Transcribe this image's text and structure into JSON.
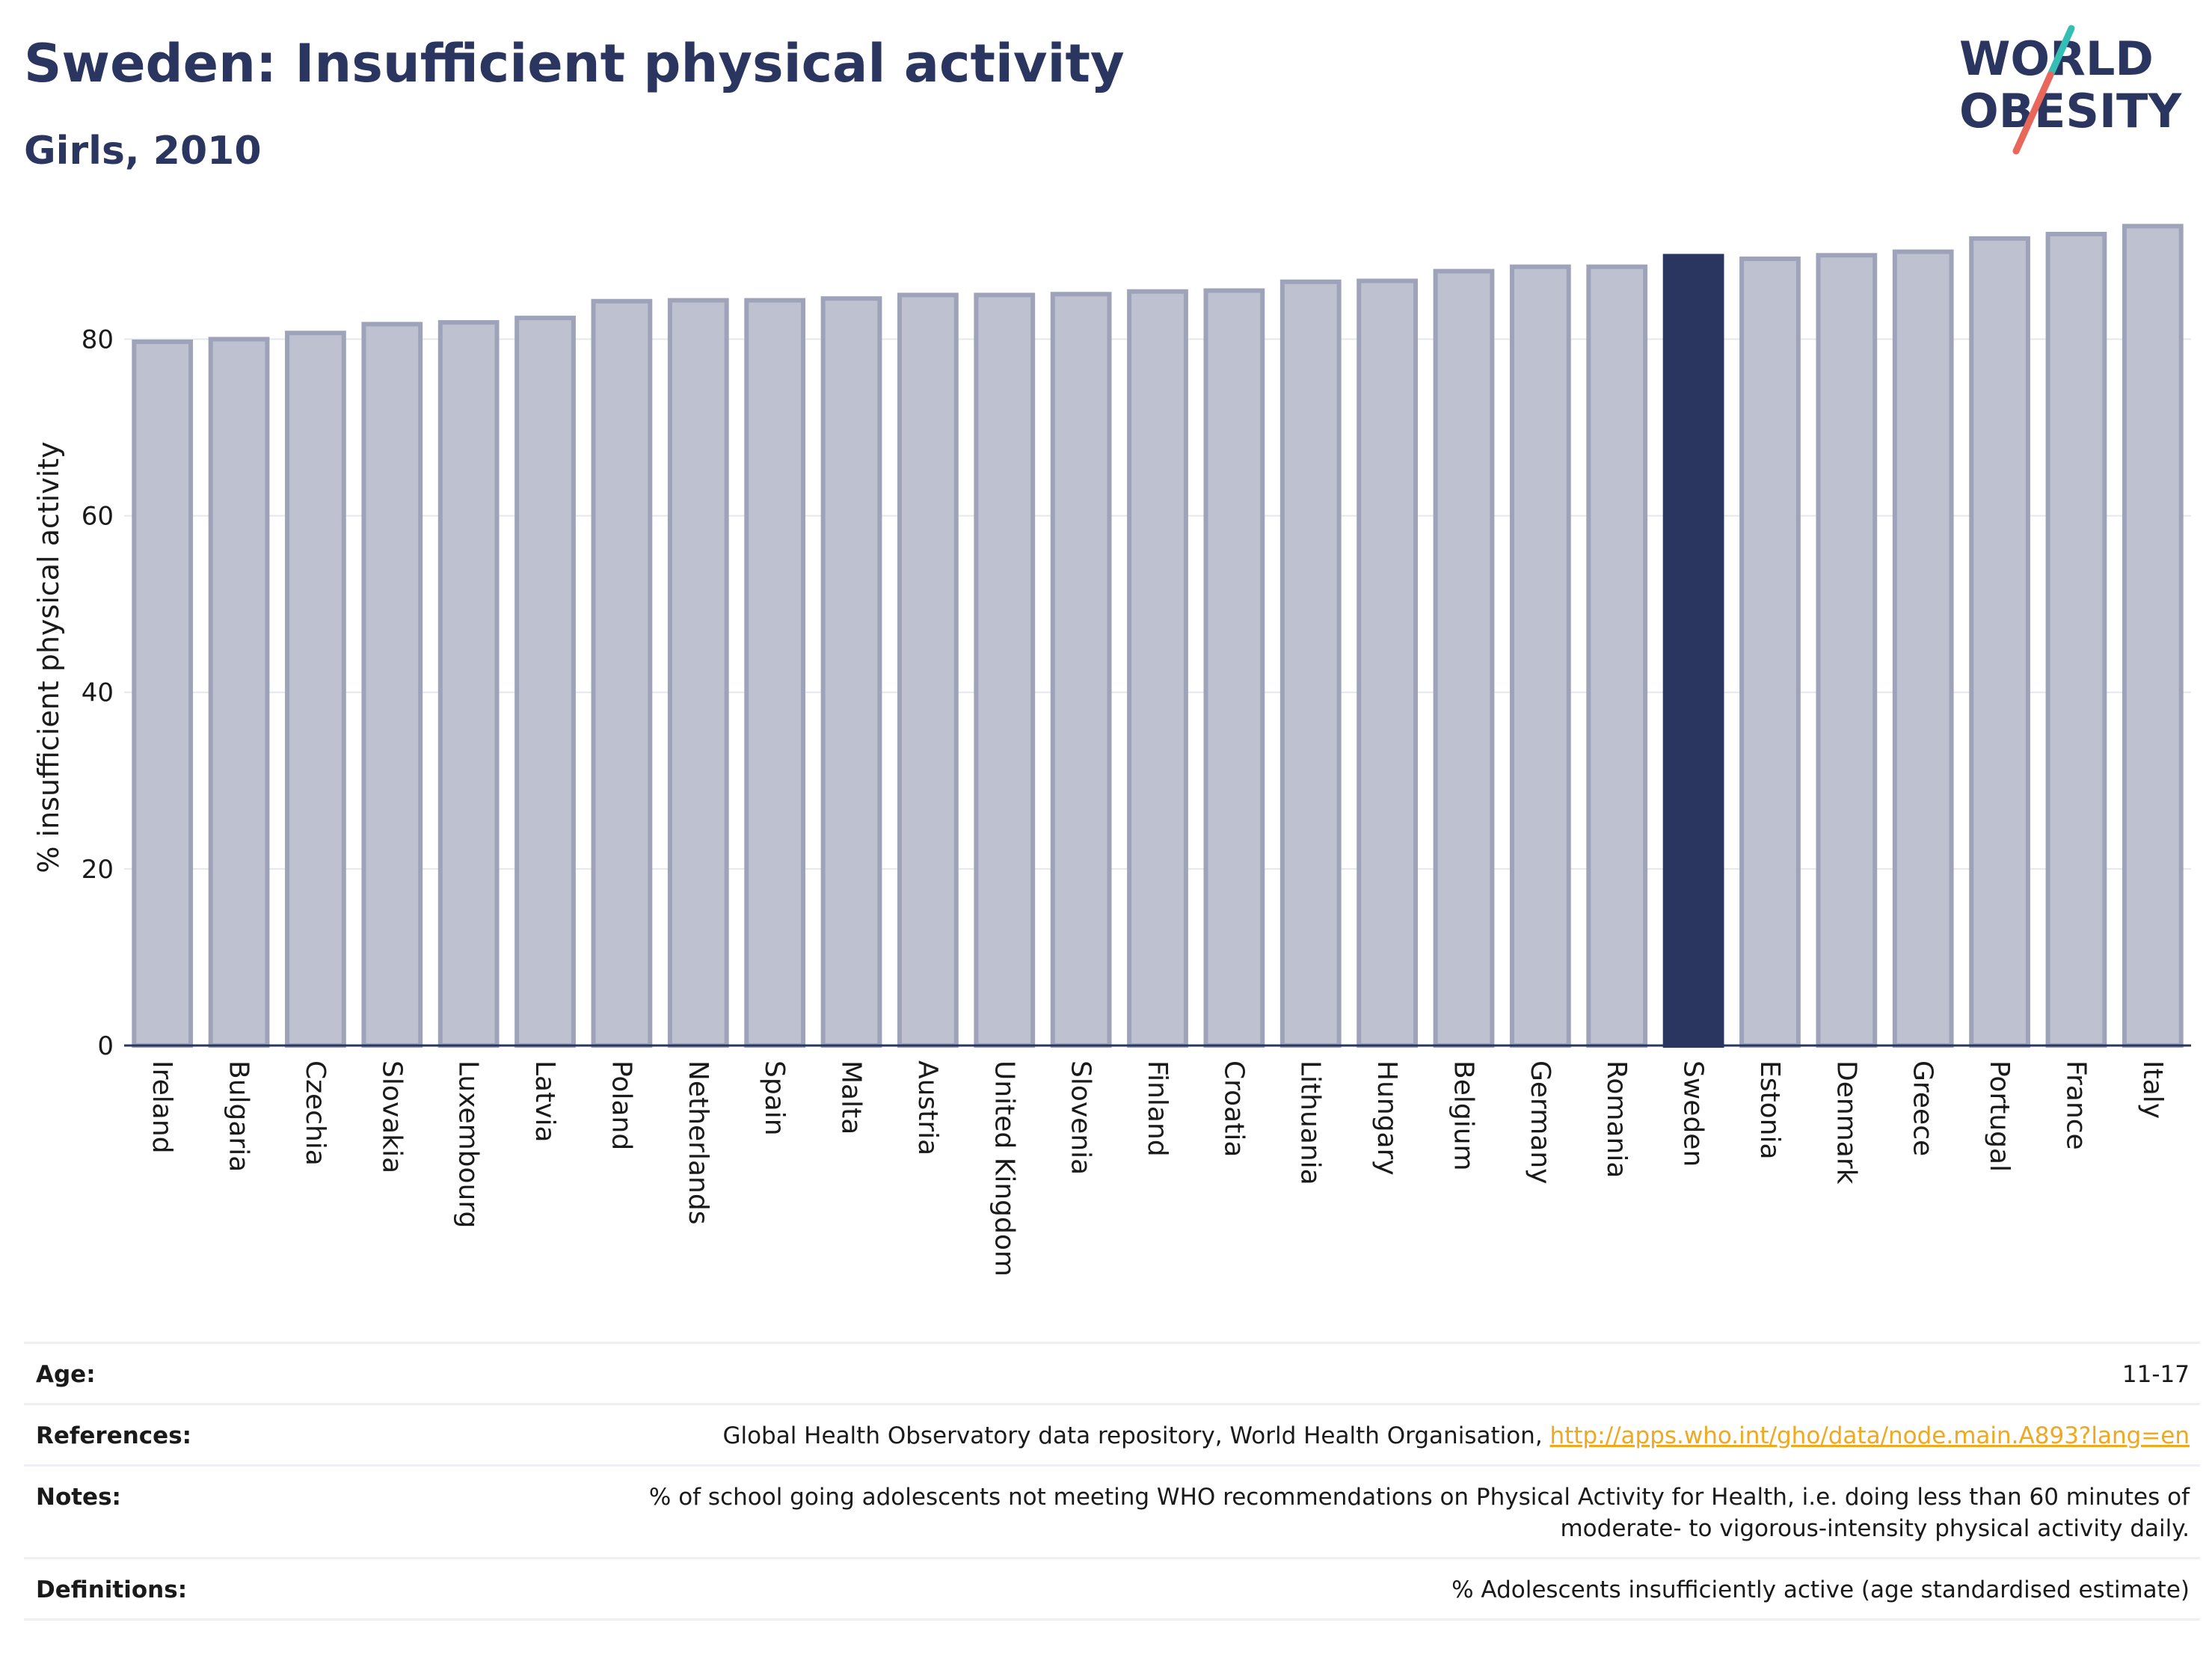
{
  "header": {
    "title": "Sweden: Insufficient physical activity",
    "subtitle": "Girls, 2010"
  },
  "logo": {
    "line1": "WORLD",
    "line2": "OBESITY"
  },
  "colors": {
    "bar": "#bec1d0",
    "bar_stroke": "#9ea3ba",
    "highlight": "#2a3560",
    "title": "#2a3560",
    "link": "#f0a81e",
    "logo_teal": "#35bfb4",
    "logo_coral": "#e8675a"
  },
  "chart_data": {
    "type": "bar",
    "title": "Sweden: Insufficient physical activity",
    "subtitle": "Girls, 2010",
    "ylabel": "% insufficient physical activity",
    "xlabel": "",
    "ylim": [
      0,
      93
    ],
    "yticks": [
      0,
      20,
      40,
      60,
      80
    ],
    "grid": true,
    "highlight": "Sweden",
    "categories": [
      "Ireland",
      "Bulgaria",
      "Czechia",
      "Slovakia",
      "Luxembourg",
      "Latvia",
      "Poland",
      "Netherlands",
      "Spain",
      "Malta",
      "Austria",
      "United Kingdom",
      "Slovenia",
      "Finland",
      "Croatia",
      "Lithuania",
      "Hungary",
      "Belgium",
      "Germany",
      "Romania",
      "Sweden",
      "Estonia",
      "Denmark",
      "Greece",
      "Portugal",
      "France",
      "Italy"
    ],
    "values": [
      79.7,
      80.0,
      80.7,
      81.7,
      81.9,
      82.4,
      84.3,
      84.4,
      84.4,
      84.6,
      85.0,
      85.0,
      85.1,
      85.4,
      85.5,
      86.5,
      86.6,
      87.7,
      88.2,
      88.2,
      89.4,
      89.1,
      89.5,
      89.9,
      91.4,
      91.9,
      92.8
    ]
  },
  "info": {
    "age_label": "Age:",
    "age_value": "11-17",
    "references_label": "References:",
    "references_text": "Global Health Observatory data repository, World Health Organisation, ",
    "references_link": "http://apps.who.int/gho/data/node.main.A893?lang=en",
    "notes_label": "Notes:",
    "notes_line1": "% of school going adolescents not meeting WHO recommendations on Physical Activity for Health, i.e. doing less than 60 minutes of",
    "notes_line2": "moderate- to vigorous-intensity physical activity daily.",
    "definitions_label": "Definitions:",
    "definitions_value": "% Adolescents insufficiently active (age standardised estimate)"
  }
}
